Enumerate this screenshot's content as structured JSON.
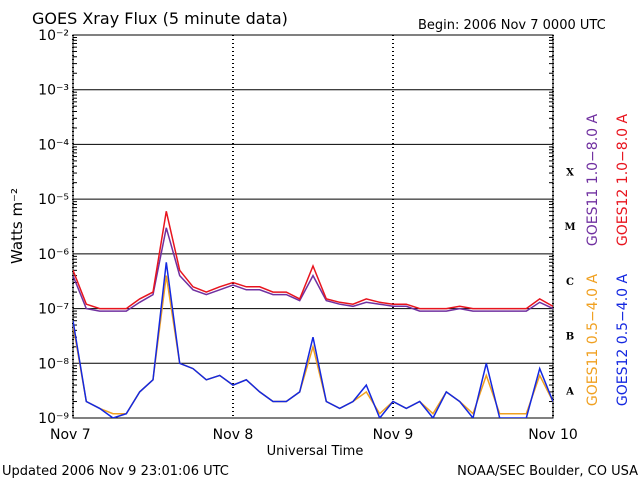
{
  "chart_data": {
    "type": "line",
    "title": "GOES Xray Flux (5 minute data)",
    "subtitle": "Begin:  2006 Nov 7 0000 UTC",
    "y_label": "Watts m⁻²",
    "x_label": "Universal Time",
    "footer_left": "Updated 2006 Nov  9 23:01:06 UTC",
    "footer_right": "NOAA/SEC Boulder, CO USA",
    "flare_classes": [
      "A",
      "B",
      "C",
      "M",
      "X"
    ],
    "log_scale": true,
    "grid": true,
    "xlim": [
      0,
      72
    ],
    "ylim": [
      1e-09,
      0.01
    ],
    "xticks": [
      {
        "value": 0,
        "label": "Nov 7"
      },
      {
        "value": 24,
        "label": "Nov 8"
      },
      {
        "value": 48,
        "label": "Nov 9"
      },
      {
        "value": 72,
        "label": "Nov 10"
      }
    ],
    "yticks": [
      {
        "value": 1e-09,
        "label": "10⁻⁹"
      },
      {
        "value": 1e-08,
        "label": "10⁻⁸"
      },
      {
        "value": 1e-07,
        "label": "10⁻⁷"
      },
      {
        "value": 1e-06,
        "label": "10⁻⁶"
      },
      {
        "value": 1e-05,
        "label": "10⁻⁵"
      },
      {
        "value": 0.0001,
        "label": "10⁻⁴"
      },
      {
        "value": 0.001,
        "label": "10⁻³"
      },
      {
        "value": 0.01,
        "label": "10⁻²"
      }
    ],
    "x": [
      0,
      2,
      4,
      6,
      8,
      10,
      12,
      14,
      16,
      18,
      20,
      22,
      24,
      26,
      28,
      30,
      32,
      34,
      36,
      38,
      40,
      42,
      44,
      46,
      48,
      50,
      52,
      54,
      56,
      58,
      60,
      62,
      64,
      66,
      68,
      70,
      72
    ],
    "series": [
      {
        "name": "GOES11 1.0−8.0 A",
        "color": "#7030a0",
        "values": [
          4e-07,
          1e-07,
          9e-08,
          9e-08,
          9e-08,
          1.3e-07,
          1.8e-07,
          3e-06,
          4e-07,
          2.2e-07,
          1.8e-07,
          2.2e-07,
          2.7e-07,
          2.2e-07,
          2.2e-07,
          1.8e-07,
          1.8e-07,
          1.4e-07,
          4e-07,
          1.4e-07,
          1.2e-07,
          1.1e-07,
          1.3e-07,
          1.2e-07,
          1.1e-07,
          1.1e-07,
          9e-08,
          9e-08,
          9e-08,
          1e-07,
          9e-08,
          9e-08,
          9e-08,
          9e-08,
          9e-08,
          1.3e-07,
          1e-07
        ]
      },
      {
        "name": "GOES12 1.0−8.0 A",
        "color": "#e8141e",
        "values": [
          5e-07,
          1.2e-07,
          1e-07,
          1e-07,
          1e-07,
          1.5e-07,
          2e-07,
          6e-06,
          5e-07,
          2.5e-07,
          2e-07,
          2.5e-07,
          3e-07,
          2.5e-07,
          2.5e-07,
          2e-07,
          2e-07,
          1.5e-07,
          6e-07,
          1.5e-07,
          1.3e-07,
          1.2e-07,
          1.5e-07,
          1.3e-07,
          1.2e-07,
          1.2e-07,
          1e-07,
          1e-07,
          1e-07,
          1.1e-07,
          1e-07,
          1e-07,
          1e-07,
          1e-07,
          1e-07,
          1.5e-07,
          1.1e-07
        ]
      },
      {
        "name": "GOES11 0.5−4.0 A",
        "color": "#f0a020",
        "values": [
          5e-08,
          2e-09,
          1.5e-09,
          1.2e-09,
          1.2e-09,
          3e-09,
          5e-09,
          4e-07,
          1e-08,
          8e-09,
          5e-09,
          6e-09,
          4e-09,
          5e-09,
          3e-09,
          2e-09,
          2e-09,
          3e-09,
          2e-08,
          2e-09,
          1.5e-09,
          2e-09,
          3e-09,
          1.2e-09,
          2e-09,
          1.5e-09,
          2e-09,
          1.2e-09,
          3e-09,
          2e-09,
          1.2e-09,
          6e-09,
          1.2e-09,
          1.2e-09,
          1.2e-09,
          6e-09,
          2e-09
        ]
      },
      {
        "name": "GOES12 0.5−4.0 A",
        "color": "#1428e0",
        "values": [
          6e-08,
          2e-09,
          1.5e-09,
          1e-09,
          1.2e-09,
          3e-09,
          5e-09,
          7e-07,
          1e-08,
          8e-09,
          5e-09,
          6e-09,
          4e-09,
          5e-09,
          3e-09,
          2e-09,
          2e-09,
          3e-09,
          3e-08,
          2e-09,
          1.5e-09,
          2e-09,
          4e-09,
          1e-09,
          2e-09,
          1.5e-09,
          2e-09,
          1e-09,
          3e-09,
          2e-09,
          1e-09,
          1e-08,
          1e-09,
          1e-09,
          1e-09,
          8e-09,
          2e-09
        ]
      }
    ]
  }
}
